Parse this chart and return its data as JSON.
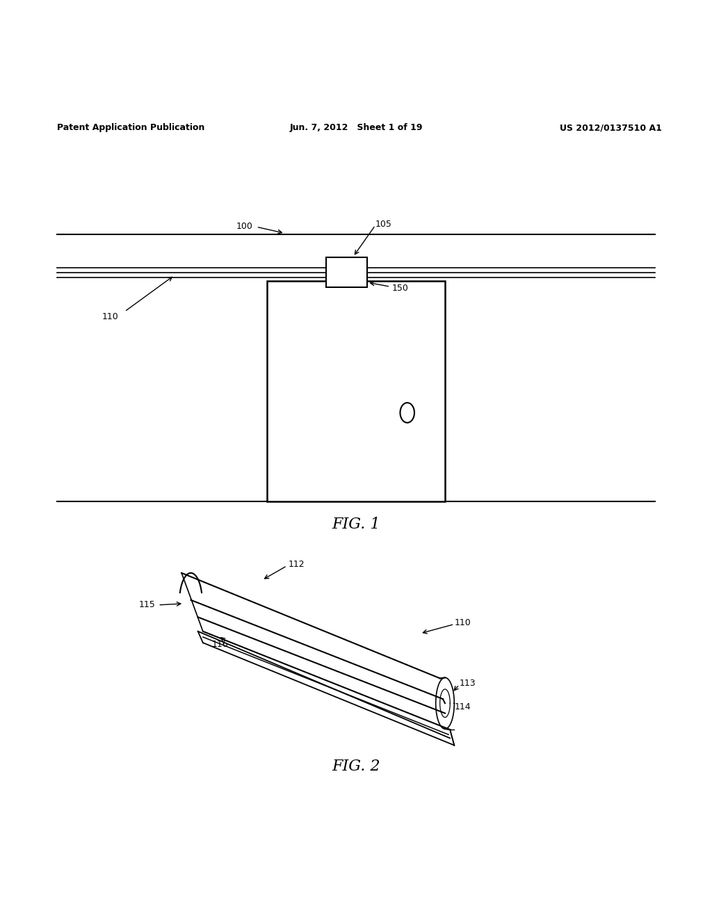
{
  "background_color": "#ffffff",
  "header_left": "Patent Application Publication",
  "header_center": "Jun. 7, 2012   Sheet 1 of 19",
  "header_right": "US 2012/0137510 A1",
  "fig1_label": "FIG. 1",
  "fig2_label": "FIG. 2"
}
